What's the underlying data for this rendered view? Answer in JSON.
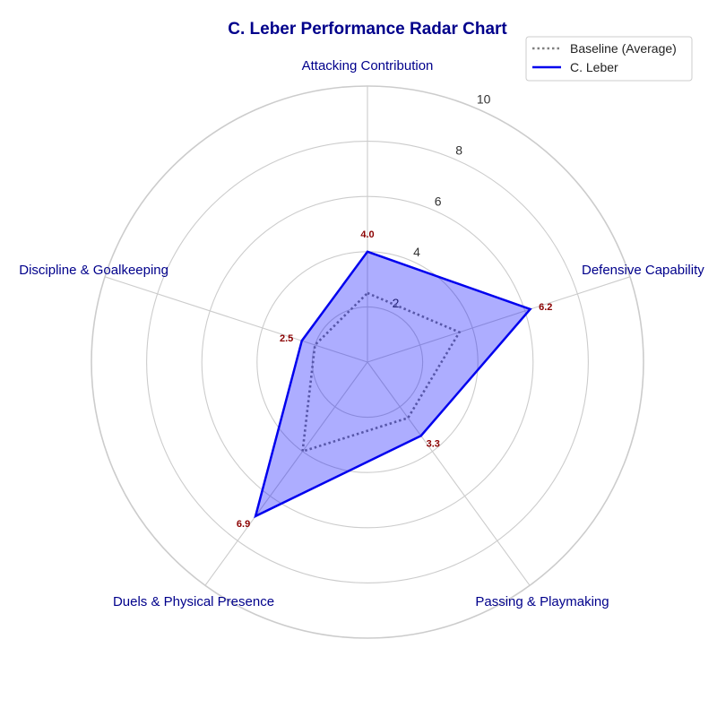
{
  "chart_data": {
    "type": "radar",
    "title": "C. Leber Performance Radar Chart",
    "categories": [
      "Attacking Contribution",
      "Defensive Capability",
      "Passing & Playmaking",
      "Duels & Physical Presence",
      "Discipline & Goalkeeping"
    ],
    "rlim": [
      0,
      10
    ],
    "rticks": [
      2,
      4,
      6,
      8,
      10
    ],
    "grid": true,
    "legend_position": "top-right",
    "series": [
      {
        "name": "Baseline (Average)",
        "values": [
          2.5,
          3.5,
          2.5,
          4.0,
          2.0
        ],
        "color": "#808080",
        "style": "dotted",
        "fill": false
      },
      {
        "name": "C. Leber",
        "values": [
          4.0,
          6.2,
          3.3,
          6.9,
          2.5
        ],
        "color": "#0000ee",
        "style": "solid",
        "fill": true,
        "fill_color": "#0000ff",
        "fill_opacity": 0.32
      }
    ],
    "data_labels": [
      "4.0",
      "6.2",
      "3.3",
      "6.9",
      "2.5"
    ],
    "colors": {
      "title": "#00008b",
      "axis_labels": "#00008b",
      "data_labels": "#8b0000",
      "grid": "#cccccc"
    }
  }
}
